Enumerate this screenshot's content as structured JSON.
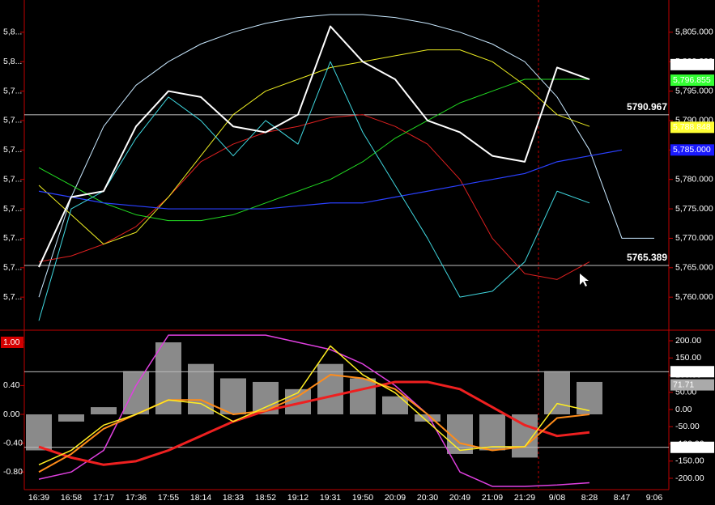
{
  "chart_data": [
    {
      "type": "line",
      "categories": [
        "16:39",
        "16:58",
        "17:17",
        "17:36",
        "17:55",
        "18:14",
        "18:33",
        "18:52",
        "19:12",
        "19:31",
        "19:50",
        "20:09",
        "20:30",
        "20:49",
        "21:09",
        "21:29",
        "9/08",
        "8:28",
        "8:47",
        "9:06"
      ],
      "ylim": [
        5754.8,
        5810.2
      ],
      "yticks": [
        {
          "value": 5760,
          "label": "5,760.000"
        },
        {
          "value": 5765,
          "label": "5,765.000"
        },
        {
          "value": 5770,
          "label": "5,770.000"
        },
        {
          "value": 5775,
          "label": "5,775.000"
        },
        {
          "value": 5780,
          "label": "5,780.000"
        },
        {
          "value": 5785,
          "label": "5,785.000"
        },
        {
          "value": 5790,
          "label": "5,790.000"
        },
        {
          "value": 5795,
          "label": "5,795.000"
        },
        {
          "value": 5800,
          "label": "5,800.000"
        },
        {
          "value": 5805,
          "label": "5,805.000"
        }
      ],
      "yticks_left": [
        {
          "value": 5805,
          "label": "5,8..."
        },
        {
          "value": 5800,
          "label": "5,8..."
        },
        {
          "value": 5795,
          "label": "5,7..."
        },
        {
          "value": 5790,
          "label": "5,7..."
        },
        {
          "value": 5785,
          "label": "5,7..."
        },
        {
          "value": 5780,
          "label": "5,7..."
        },
        {
          "value": 5775,
          "label": "5,7..."
        },
        {
          "value": 5770,
          "label": "5,7..."
        },
        {
          "value": 5765,
          "label": "5,7..."
        },
        {
          "value": 5760,
          "label": "5,7..."
        }
      ],
      "reference_lines": [
        5790.967,
        5765.389
      ],
      "price_labels": [
        {
          "value": 5799.5,
          "label": "5,799.500",
          "color": "#ffffff"
        },
        {
          "value": 5796.855,
          "label": "5,796.855",
          "color": "#33ff33"
        },
        {
          "value": 5788.848,
          "label": "5,788.848",
          "color": "#ffff33"
        },
        {
          "value": 5785,
          "label": "5,785.000",
          "color": "#1a1aff"
        }
      ],
      "series": [
        {
          "color": "#c8e8ff",
          "width": 1,
          "values": [
            5760,
            5777,
            5789,
            5796,
            5800,
            5803,
            5805,
            5806.5,
            5807.5,
            5808,
            5808,
            5807.5,
            5806.5,
            5805,
            5803,
            5800,
            5794,
            5785,
            5770,
            5770
          ]
        },
        {
          "color": "#e02020",
          "width": 1,
          "values": [
            5766,
            5767,
            5769,
            5772,
            5777,
            5783,
            5786,
            5788,
            5789,
            5790.5,
            5791,
            5789,
            5786,
            5780,
            5770,
            5764,
            5763,
            5766,
            null,
            null
          ]
        },
        {
          "color": "#22dd22",
          "width": 1,
          "values": [
            5782,
            5779,
            5776,
            5774,
            5773,
            5773,
            5774,
            5776,
            5778,
            5780,
            5783,
            5787,
            5790,
            5793,
            5795,
            5797,
            5797,
            5797,
            null,
            null
          ]
        },
        {
          "color": "#eeee22",
          "width": 1,
          "values": [
            5779,
            5774,
            5769,
            5771,
            5777,
            5784,
            5791,
            5795,
            5797,
            5799,
            5800,
            5801,
            5802,
            5802,
            5800,
            5796,
            5791,
            5789,
            null,
            null
          ]
        },
        {
          "color": "#2a40ff",
          "width": 1.2,
          "values": [
            5778,
            5777,
            5776,
            5775.5,
            5775,
            5775,
            5775,
            5775,
            5775.5,
            5776,
            5776,
            5777,
            5778,
            5779,
            5780,
            5781,
            5783,
            5784,
            5785,
            null
          ]
        },
        {
          "color": "#40d8e0",
          "width": 1,
          "values": [
            5756,
            5775,
            5778,
            5787,
            5794,
            5790,
            5784,
            5790,
            5786,
            5800,
            5788,
            5779,
            5770,
            5760,
            5761,
            5766,
            5778,
            5776,
            null,
            null
          ]
        },
        {
          "color": "#ffffff",
          "width": 2,
          "values": [
            5765.1,
            5777,
            5778,
            5789,
            5795,
            5794,
            5789,
            5788,
            5791,
            5806,
            5800,
            5797,
            5790,
            5788,
            5784,
            5783,
            5799,
            5797,
            null,
            null
          ]
        }
      ]
    },
    {
      "type": "line",
      "ylim": [
        -1.045,
        1.146
      ],
      "yticks": [
        {
          "value": 1,
          "label": "1.00",
          "box": "#d40000"
        },
        {
          "value": 0.4,
          "label": "0.40"
        },
        {
          "value": 0,
          "label": "0.00"
        },
        {
          "value": -0.4,
          "label": "-0.40"
        },
        {
          "value": -0.8,
          "label": "-0.80"
        }
      ],
      "y2lim": [
        -233,
        226
      ],
      "y2ticks": [
        {
          "value": 200,
          "label": "200.00"
        },
        {
          "value": 150,
          "label": "150.00"
        },
        {
          "value": 100,
          "label": "100.00"
        },
        {
          "value": 50,
          "label": "50.00"
        },
        {
          "value": 0,
          "label": "0.00"
        },
        {
          "value": -50,
          "label": "-50.00"
        },
        {
          "value": -100,
          "label": "-100.00"
        },
        {
          "value": -150,
          "label": "-150.00"
        },
        {
          "value": -200,
          "label": "-200.00"
        }
      ],
      "reference_lines": [
        110,
        -110
      ],
      "value_boxes": [
        {
          "value": 110,
          "color": "#ffffff"
        },
        {
          "value": 71.71,
          "color": "#aaaaaa"
        },
        {
          "value": -110,
          "label": "-110.00",
          "color": "#ffffff"
        }
      ],
      "series": [
        {
          "style": "bars",
          "color": "#b8b8b8",
          "values": [
            -0.5,
            -0.1,
            0.1,
            0.6,
            1.0,
            0.7,
            0.5,
            0.45,
            0.35,
            0.7,
            0.5,
            0.25,
            -0.1,
            -0.55,
            -0.5,
            -0.6,
            0.6,
            0.45,
            null,
            null
          ]
        },
        {
          "color": "#e040e0",
          "width": 1.5,
          "values": [
            -0.9,
            -0.8,
            -0.5,
            0.4,
            1.1,
            1.1,
            1.1,
            1.1,
            1.0,
            0.9,
            0.7,
            0.4,
            0.0,
            -0.8,
            -1.0,
            -1.0,
            -0.98,
            -0.95,
            null,
            null
          ]
        },
        {
          "color": "#ee2020",
          "width": 3,
          "values": [
            -0.45,
            -0.6,
            -0.7,
            -0.65,
            -0.5,
            -0.3,
            -0.1,
            0.05,
            0.15,
            0.25,
            0.35,
            0.45,
            0.45,
            0.35,
            0.1,
            -0.15,
            -0.3,
            -0.25,
            null,
            null
          ]
        },
        {
          "color": "#ff8c1a",
          "width": 2,
          "values": [
            -0.8,
            -0.55,
            -0.2,
            0.0,
            0.2,
            0.2,
            0.0,
            0.05,
            0.25,
            0.55,
            0.5,
            0.35,
            0.0,
            -0.4,
            -0.5,
            -0.45,
            -0.05,
            0.0,
            null,
            null
          ]
        },
        {
          "color": "#ffee22",
          "width": 1.5,
          "values": [
            -0.7,
            -0.5,
            -0.15,
            0.0,
            0.2,
            0.15,
            -0.1,
            0.1,
            0.3,
            0.95,
            0.55,
            0.3,
            -0.1,
            -0.5,
            -0.45,
            -0.45,
            0.15,
            0.05,
            null,
            null
          ]
        }
      ]
    }
  ]
}
